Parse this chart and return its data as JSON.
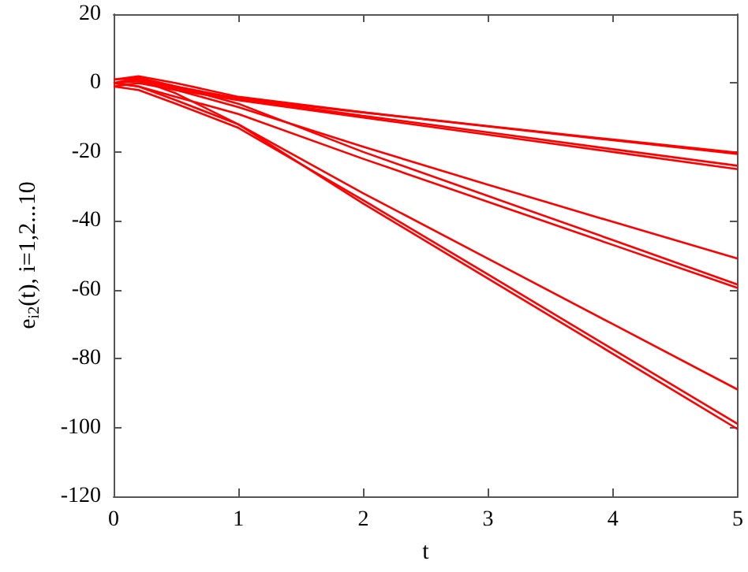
{
  "chart_data": {
    "type": "line",
    "xlabel": "t",
    "ylabel": "e$_{i2}$(t), i=1,2...10",
    "x": [
      0,
      0.2,
      0.5,
      1,
      2,
      3,
      4,
      5
    ],
    "xlim": [
      0,
      5
    ],
    "xticks": [
      0,
      1,
      2,
      3,
      4,
      5
    ],
    "ylim": [
      -120,
      20
    ],
    "yticks": [
      -120,
      -100,
      -80,
      -60,
      -40,
      -20,
      0,
      20
    ],
    "grid": false,
    "marker": "none",
    "line_style": "solid",
    "series": [
      {
        "color": "#ff0000",
        "values": [
          0,
          1.5,
          -1,
          -4.5,
          -8.5,
          -12.5,
          -16.4,
          -20.2
        ]
      },
      {
        "color": "#ff0000",
        "values": [
          1,
          2,
          0,
          -4,
          -8.5,
          -12.6,
          -16.6,
          -20.6
        ]
      },
      {
        "color": "#ff0000",
        "values": [
          0,
          1,
          -1.5,
          -4.5,
          -9.5,
          -14.3,
          -19.2,
          -24
        ]
      },
      {
        "color": "#ff0000",
        "values": [
          -1,
          0,
          -2,
          -5,
          -10,
          -15,
          -20,
          -25
        ]
      },
      {
        "color": "#ff0000",
        "values": [
          0,
          0.5,
          -2,
          -7,
          -18.5,
          -29.5,
          -40.3,
          -51
        ]
      },
      {
        "color": "#ff0000",
        "values": [
          1,
          1.5,
          -1,
          -6,
          -20,
          -32.8,
          -45.6,
          -58.5
        ]
      },
      {
        "color": "#ff0000",
        "values": [
          0,
          -1,
          -4,
          -9,
          -22,
          -34.5,
          -47,
          -59.5
        ]
      },
      {
        "color": "#ff0000",
        "values": [
          0,
          -1,
          -5,
          -12,
          -32,
          -51,
          -70,
          -89
        ]
      },
      {
        "color": "#ff0000",
        "values": [
          -1,
          -2,
          -6,
          -13,
          -34,
          -55.6,
          -77.3,
          -99
        ]
      },
      {
        "color": "#ff0000",
        "values": [
          0,
          1,
          -3,
          -12,
          -35,
          -56.8,
          -78.6,
          -100.5
        ]
      }
    ]
  }
}
